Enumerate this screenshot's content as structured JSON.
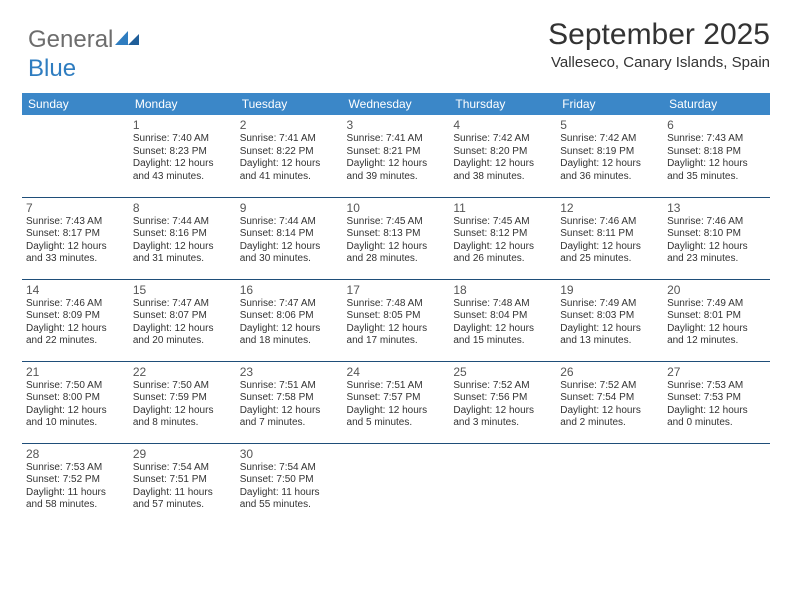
{
  "brand": {
    "general": "General",
    "blue": "Blue"
  },
  "title": "September 2025",
  "location": "Valleseco, Canary Islands, Spain",
  "colors": {
    "header_bg": "#3b87c8",
    "header_text": "#ffffff",
    "row_border": "#1f4e79",
    "text": "#333333",
    "logo_gray": "#6d6d6d",
    "logo_blue": "#2f7dc0",
    "background": "#ffffff"
  },
  "day_headers": [
    "Sunday",
    "Monday",
    "Tuesday",
    "Wednesday",
    "Thursday",
    "Friday",
    "Saturday"
  ],
  "weeks": [
    [
      null,
      {
        "n": "1",
        "sr": "Sunrise: 7:40 AM",
        "ss": "Sunset: 8:23 PM",
        "dl": "Daylight: 12 hours and 43 minutes."
      },
      {
        "n": "2",
        "sr": "Sunrise: 7:41 AM",
        "ss": "Sunset: 8:22 PM",
        "dl": "Daylight: 12 hours and 41 minutes."
      },
      {
        "n": "3",
        "sr": "Sunrise: 7:41 AM",
        "ss": "Sunset: 8:21 PM",
        "dl": "Daylight: 12 hours and 39 minutes."
      },
      {
        "n": "4",
        "sr": "Sunrise: 7:42 AM",
        "ss": "Sunset: 8:20 PM",
        "dl": "Daylight: 12 hours and 38 minutes."
      },
      {
        "n": "5",
        "sr": "Sunrise: 7:42 AM",
        "ss": "Sunset: 8:19 PM",
        "dl": "Daylight: 12 hours and 36 minutes."
      },
      {
        "n": "6",
        "sr": "Sunrise: 7:43 AM",
        "ss": "Sunset: 8:18 PM",
        "dl": "Daylight: 12 hours and 35 minutes."
      }
    ],
    [
      {
        "n": "7",
        "sr": "Sunrise: 7:43 AM",
        "ss": "Sunset: 8:17 PM",
        "dl": "Daylight: 12 hours and 33 minutes."
      },
      {
        "n": "8",
        "sr": "Sunrise: 7:44 AM",
        "ss": "Sunset: 8:16 PM",
        "dl": "Daylight: 12 hours and 31 minutes."
      },
      {
        "n": "9",
        "sr": "Sunrise: 7:44 AM",
        "ss": "Sunset: 8:14 PM",
        "dl": "Daylight: 12 hours and 30 minutes."
      },
      {
        "n": "10",
        "sr": "Sunrise: 7:45 AM",
        "ss": "Sunset: 8:13 PM",
        "dl": "Daylight: 12 hours and 28 minutes."
      },
      {
        "n": "11",
        "sr": "Sunrise: 7:45 AM",
        "ss": "Sunset: 8:12 PM",
        "dl": "Daylight: 12 hours and 26 minutes."
      },
      {
        "n": "12",
        "sr": "Sunrise: 7:46 AM",
        "ss": "Sunset: 8:11 PM",
        "dl": "Daylight: 12 hours and 25 minutes."
      },
      {
        "n": "13",
        "sr": "Sunrise: 7:46 AM",
        "ss": "Sunset: 8:10 PM",
        "dl": "Daylight: 12 hours and 23 minutes."
      }
    ],
    [
      {
        "n": "14",
        "sr": "Sunrise: 7:46 AM",
        "ss": "Sunset: 8:09 PM",
        "dl": "Daylight: 12 hours and 22 minutes."
      },
      {
        "n": "15",
        "sr": "Sunrise: 7:47 AM",
        "ss": "Sunset: 8:07 PM",
        "dl": "Daylight: 12 hours and 20 minutes."
      },
      {
        "n": "16",
        "sr": "Sunrise: 7:47 AM",
        "ss": "Sunset: 8:06 PM",
        "dl": "Daylight: 12 hours and 18 minutes."
      },
      {
        "n": "17",
        "sr": "Sunrise: 7:48 AM",
        "ss": "Sunset: 8:05 PM",
        "dl": "Daylight: 12 hours and 17 minutes."
      },
      {
        "n": "18",
        "sr": "Sunrise: 7:48 AM",
        "ss": "Sunset: 8:04 PM",
        "dl": "Daylight: 12 hours and 15 minutes."
      },
      {
        "n": "19",
        "sr": "Sunrise: 7:49 AM",
        "ss": "Sunset: 8:03 PM",
        "dl": "Daylight: 12 hours and 13 minutes."
      },
      {
        "n": "20",
        "sr": "Sunrise: 7:49 AM",
        "ss": "Sunset: 8:01 PM",
        "dl": "Daylight: 12 hours and 12 minutes."
      }
    ],
    [
      {
        "n": "21",
        "sr": "Sunrise: 7:50 AM",
        "ss": "Sunset: 8:00 PM",
        "dl": "Daylight: 12 hours and 10 minutes."
      },
      {
        "n": "22",
        "sr": "Sunrise: 7:50 AM",
        "ss": "Sunset: 7:59 PM",
        "dl": "Daylight: 12 hours and 8 minutes."
      },
      {
        "n": "23",
        "sr": "Sunrise: 7:51 AM",
        "ss": "Sunset: 7:58 PM",
        "dl": "Daylight: 12 hours and 7 minutes."
      },
      {
        "n": "24",
        "sr": "Sunrise: 7:51 AM",
        "ss": "Sunset: 7:57 PM",
        "dl": "Daylight: 12 hours and 5 minutes."
      },
      {
        "n": "25",
        "sr": "Sunrise: 7:52 AM",
        "ss": "Sunset: 7:56 PM",
        "dl": "Daylight: 12 hours and 3 minutes."
      },
      {
        "n": "26",
        "sr": "Sunrise: 7:52 AM",
        "ss": "Sunset: 7:54 PM",
        "dl": "Daylight: 12 hours and 2 minutes."
      },
      {
        "n": "27",
        "sr": "Sunrise: 7:53 AM",
        "ss": "Sunset: 7:53 PM",
        "dl": "Daylight: 12 hours and 0 minutes."
      }
    ],
    [
      {
        "n": "28",
        "sr": "Sunrise: 7:53 AM",
        "ss": "Sunset: 7:52 PM",
        "dl": "Daylight: 11 hours and 58 minutes."
      },
      {
        "n": "29",
        "sr": "Sunrise: 7:54 AM",
        "ss": "Sunset: 7:51 PM",
        "dl": "Daylight: 11 hours and 57 minutes."
      },
      {
        "n": "30",
        "sr": "Sunrise: 7:54 AM",
        "ss": "Sunset: 7:50 PM",
        "dl": "Daylight: 11 hours and 55 minutes."
      },
      null,
      null,
      null,
      null
    ]
  ]
}
